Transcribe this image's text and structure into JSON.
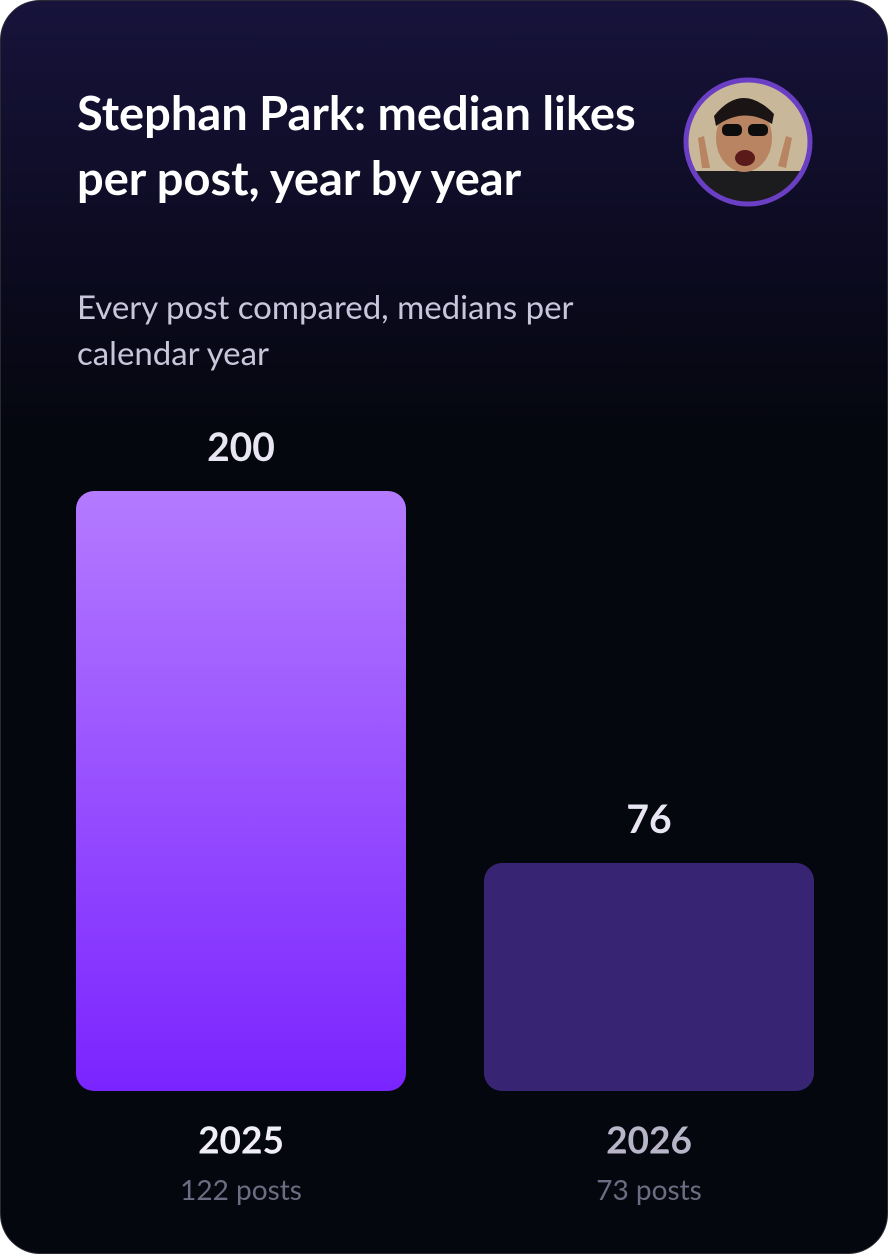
{
  "chart_data": {
    "type": "bar",
    "title": "Stephan Park: median likes per post, year by year",
    "subtitle": "Every post compared, medians per calendar year",
    "categories": [
      "2025",
      "2026"
    ],
    "sublabels": [
      "122 posts",
      "73 posts"
    ],
    "values": [
      200,
      76
    ],
    "colors": [
      [
        "#b47aff",
        "#7a24ff"
      ],
      [
        "#372573",
        "#372573"
      ]
    ]
  }
}
